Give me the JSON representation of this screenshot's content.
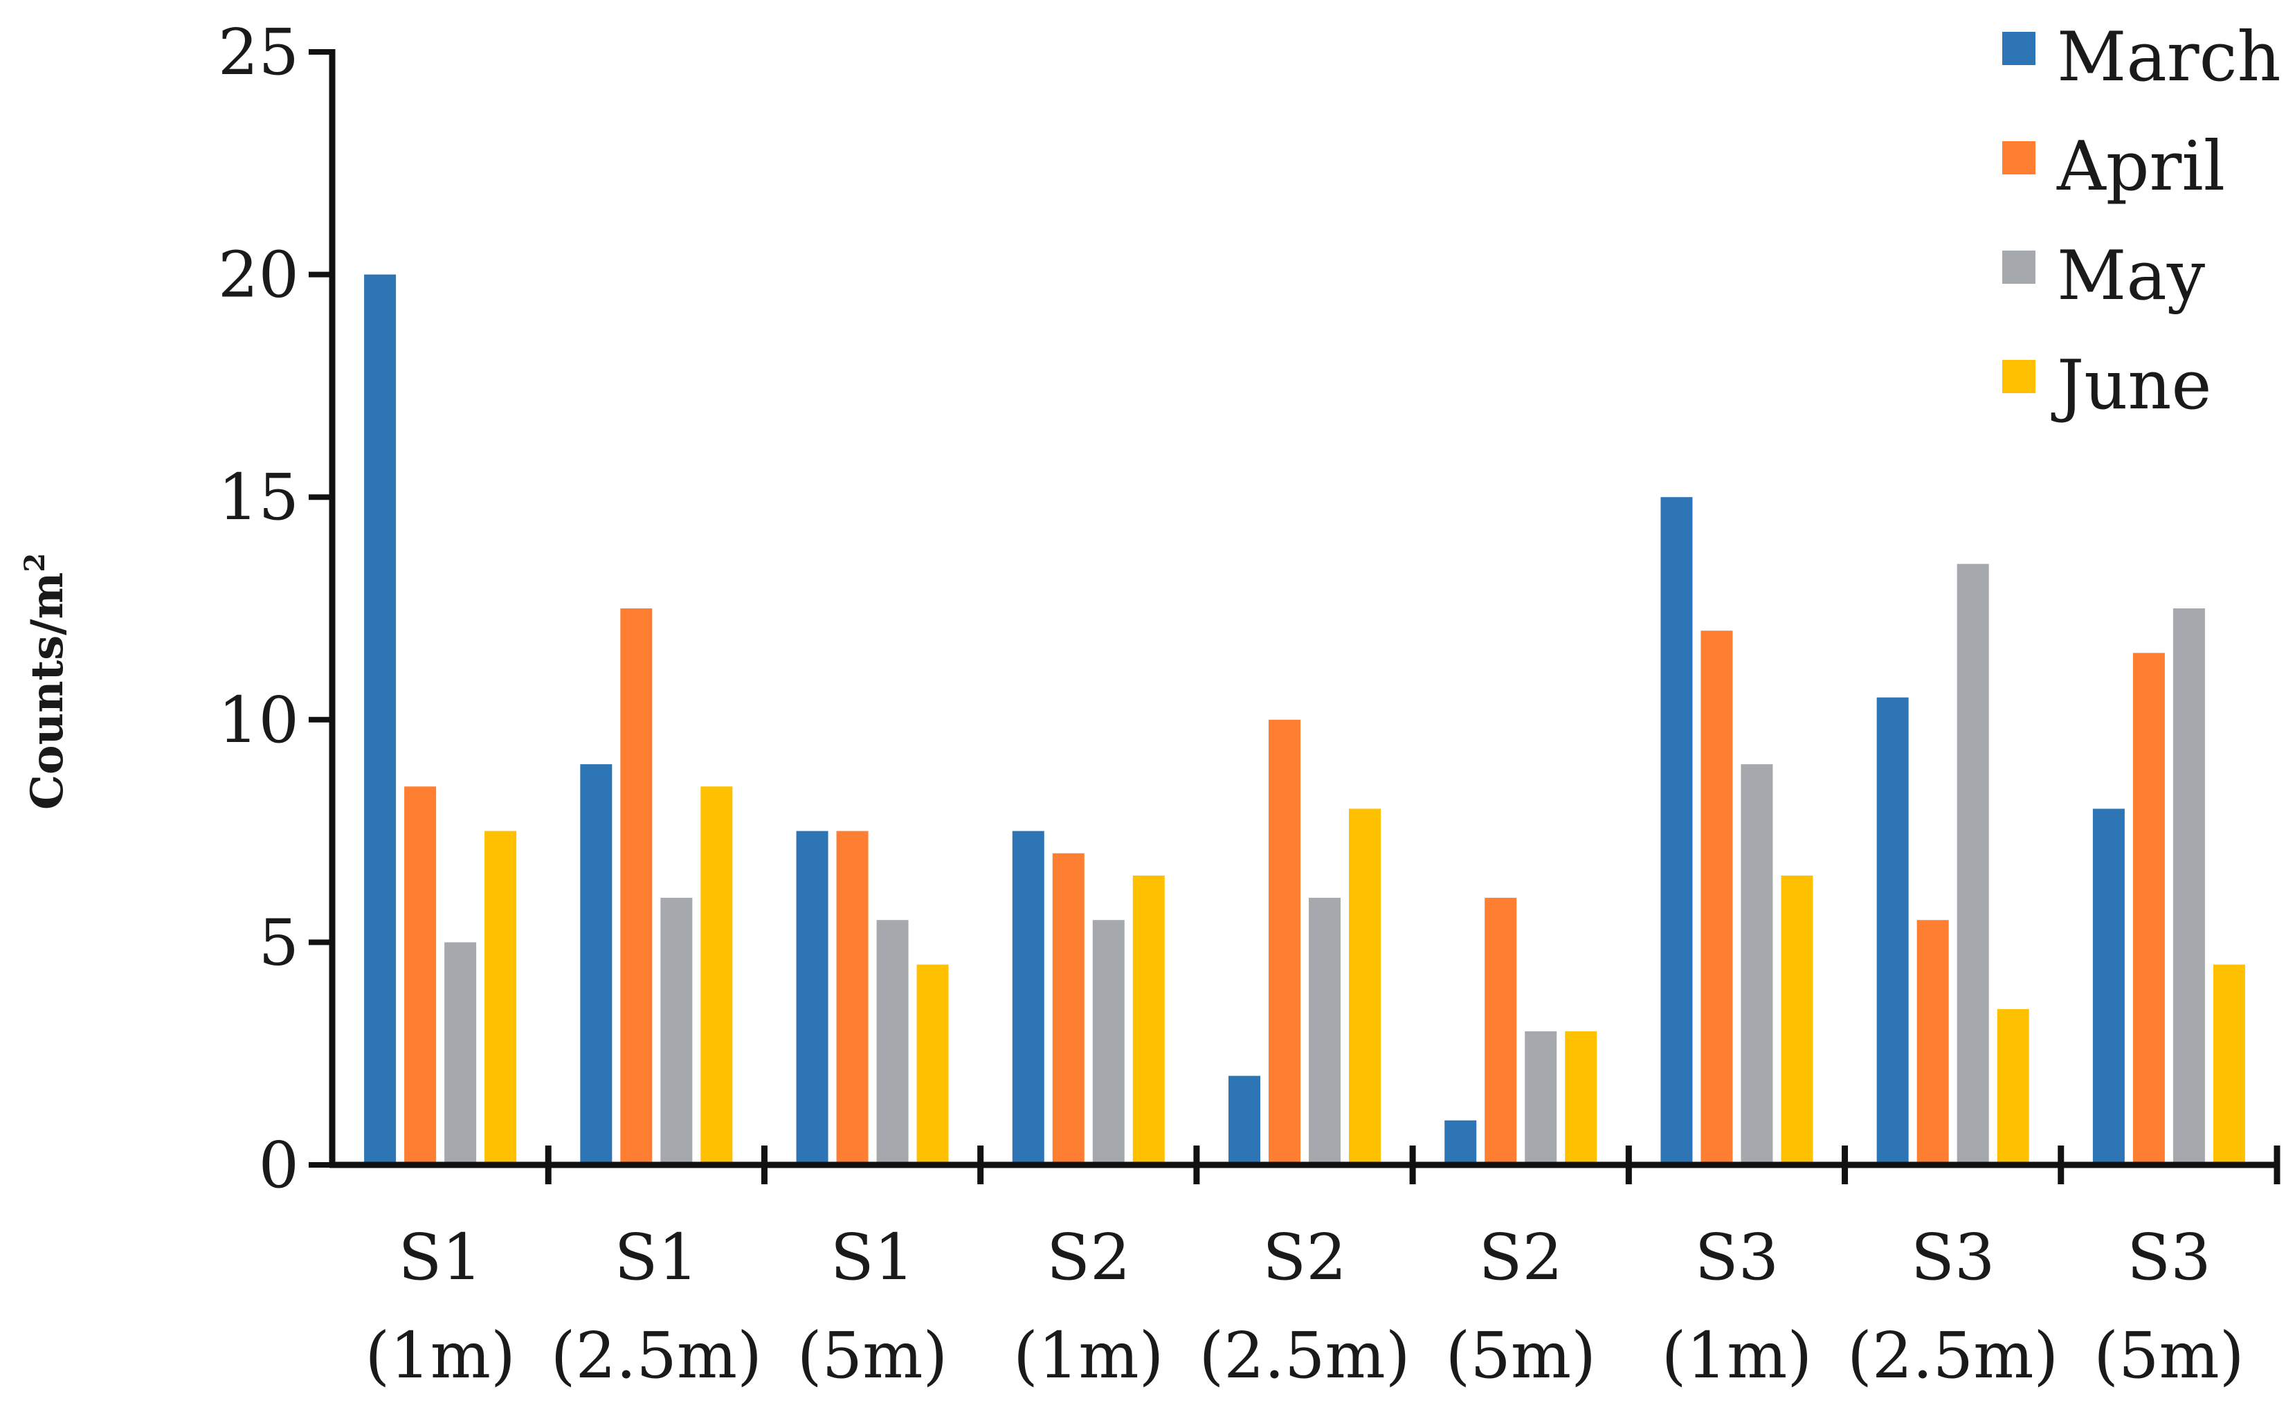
{
  "chart_data": {
    "type": "bar",
    "title": "",
    "xlabel": "",
    "ylabel": "Counts/m",
    "ylabel_superscript": "2",
    "ylim": [
      0,
      25
    ],
    "yticks": [
      "0",
      "5",
      "10",
      "15",
      "20",
      "25"
    ],
    "grid": false,
    "legend_position": "top-right",
    "categories": [
      {
        "line1": "S1",
        "line2": "(1m)"
      },
      {
        "line1": "S1",
        "line2": "(2.5m)"
      },
      {
        "line1": "S1",
        "line2": "(5m)"
      },
      {
        "line1": "S2",
        "line2": "(1m)"
      },
      {
        "line1": "S2",
        "line2": "(2.5m)"
      },
      {
        "line1": "S2",
        "line2": "(5m)"
      },
      {
        "line1": "S3",
        "line2": "(1m)"
      },
      {
        "line1": "S3",
        "line2": "(2.5m)"
      },
      {
        "line1": "S3",
        "line2": "(5m)"
      }
    ],
    "series": [
      {
        "name": "March",
        "color": "#2E75B6",
        "values": [
          20,
          9,
          7.5,
          7.5,
          2,
          1,
          15,
          10.5,
          8
        ]
      },
      {
        "name": "April",
        "color": "#FF7F32",
        "values": [
          8.5,
          12.5,
          7.5,
          7,
          10,
          6,
          12,
          5.5,
          11.5
        ]
      },
      {
        "name": "May",
        "color": "#A5A8AC",
        "values": [
          5,
          6,
          5.5,
          5.5,
          6,
          3,
          9,
          13.5,
          12.5
        ]
      },
      {
        "name": "June",
        "color": "#FFC000",
        "values": [
          7.5,
          8.5,
          4.5,
          6.5,
          8,
          3,
          6.5,
          3.5,
          4.5
        ]
      }
    ]
  }
}
